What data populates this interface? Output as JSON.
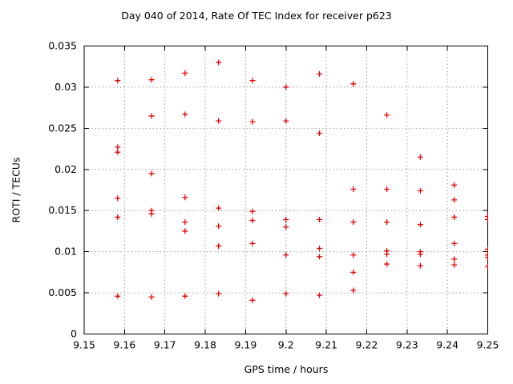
{
  "window": {
    "title": "Day 040 of 2014, Rate Of TEC Index for receiver p623"
  },
  "colors": {
    "background": "#ffffff",
    "axis": "#000000",
    "grid": "#9c9c9c",
    "marker": "#e60000",
    "text": "#000000"
  },
  "chart_data": {
    "type": "scatter",
    "title": "Day 040 of 2014, Rate Of TEC Index for receiver p623",
    "xlabel": "GPS time / hours",
    "ylabel": "ROTI / TECUs",
    "xlim": [
      9.15,
      9.25
    ],
    "ylim": [
      0,
      0.035
    ],
    "grid": true,
    "legend": "none",
    "marker": {
      "shape": "plus",
      "color": "#e60000",
      "size": 7
    },
    "x_ticks": [
      {
        "v": 9.15,
        "label": "9.15"
      },
      {
        "v": 9.16,
        "label": "9.16"
      },
      {
        "v": 9.17,
        "label": "9.17"
      },
      {
        "v": 9.18,
        "label": "9.18"
      },
      {
        "v": 9.19,
        "label": "9.19"
      },
      {
        "v": 9.2,
        "label": "9.2"
      },
      {
        "v": 9.21,
        "label": "9.21"
      },
      {
        "v": 9.22,
        "label": "9.22"
      },
      {
        "v": 9.23,
        "label": "9.23"
      },
      {
        "v": 9.24,
        "label": "9.24"
      },
      {
        "v": 9.25,
        "label": "9.25"
      }
    ],
    "y_ticks": [
      {
        "v": 0,
        "label": "0"
      },
      {
        "v": 0.005,
        "label": "0.005"
      },
      {
        "v": 0.01,
        "label": "0.01"
      },
      {
        "v": 0.015,
        "label": "0.015"
      },
      {
        "v": 0.02,
        "label": "0.02"
      },
      {
        "v": 0.025,
        "label": "0.025"
      },
      {
        "v": 0.03,
        "label": "0.03"
      },
      {
        "v": 0.035,
        "label": "0.035"
      }
    ],
    "series": [
      {
        "name": "ROTI",
        "points": [
          [
            9.1583,
            0.0308
          ],
          [
            9.1583,
            0.0227
          ],
          [
            9.1583,
            0.0221
          ],
          [
            9.1583,
            0.0165
          ],
          [
            9.1583,
            0.0142
          ],
          [
            9.1583,
            0.0046
          ],
          [
            9.1667,
            0.0309
          ],
          [
            9.1667,
            0.0265
          ],
          [
            9.1667,
            0.0195
          ],
          [
            9.1667,
            0.015
          ],
          [
            9.1667,
            0.0146
          ],
          [
            9.1667,
            0.0045
          ],
          [
            9.175,
            0.0317
          ],
          [
            9.175,
            0.0267
          ],
          [
            9.175,
            0.0166
          ],
          [
            9.175,
            0.0136
          ],
          [
            9.175,
            0.0125
          ],
          [
            9.175,
            0.0046
          ],
          [
            9.1833,
            0.033
          ],
          [
            9.1833,
            0.0259
          ],
          [
            9.1833,
            0.0153
          ],
          [
            9.1833,
            0.0131
          ],
          [
            9.1833,
            0.0107
          ],
          [
            9.1833,
            0.0049
          ],
          [
            9.1917,
            0.0308
          ],
          [
            9.1917,
            0.0258
          ],
          [
            9.1917,
            0.0149
          ],
          [
            9.1917,
            0.0138
          ],
          [
            9.1917,
            0.011
          ],
          [
            9.1917,
            0.0041
          ],
          [
            9.2,
            0.03
          ],
          [
            9.2,
            0.0259
          ],
          [
            9.2,
            0.0139
          ],
          [
            9.2,
            0.013
          ],
          [
            9.2,
            0.0096
          ],
          [
            9.2,
            0.0049
          ],
          [
            9.2083,
            0.0316
          ],
          [
            9.2083,
            0.0244
          ],
          [
            9.2083,
            0.0139
          ],
          [
            9.2083,
            0.0104
          ],
          [
            9.2083,
            0.0094
          ],
          [
            9.2083,
            0.0047
          ],
          [
            9.2167,
            0.0304
          ],
          [
            9.2167,
            0.0176
          ],
          [
            9.2167,
            0.0136
          ],
          [
            9.2167,
            0.0096
          ],
          [
            9.2167,
            0.0075
          ],
          [
            9.2167,
            0.0053
          ],
          [
            9.225,
            0.0266
          ],
          [
            9.225,
            0.0176
          ],
          [
            9.225,
            0.0136
          ],
          [
            9.225,
            0.0101
          ],
          [
            9.225,
            0.0097
          ],
          [
            9.225,
            0.0085
          ],
          [
            9.2333,
            0.0215
          ],
          [
            9.2333,
            0.0174
          ],
          [
            9.2333,
            0.0133
          ],
          [
            9.2333,
            0.01
          ],
          [
            9.2333,
            0.0097
          ],
          [
            9.2333,
            0.0083
          ],
          [
            9.2417,
            0.0181
          ],
          [
            9.2417,
            0.0163
          ],
          [
            9.2417,
            0.0142
          ],
          [
            9.2417,
            0.011
          ],
          [
            9.2417,
            0.0091
          ],
          [
            9.2417,
            0.0084
          ],
          [
            9.25,
            0.0143
          ],
          [
            9.25,
            0.0139
          ],
          [
            9.25,
            0.0103
          ],
          [
            9.25,
            0.0096
          ],
          [
            9.25,
            0.0093
          ],
          [
            9.25,
            0.0082
          ]
        ]
      }
    ]
  }
}
